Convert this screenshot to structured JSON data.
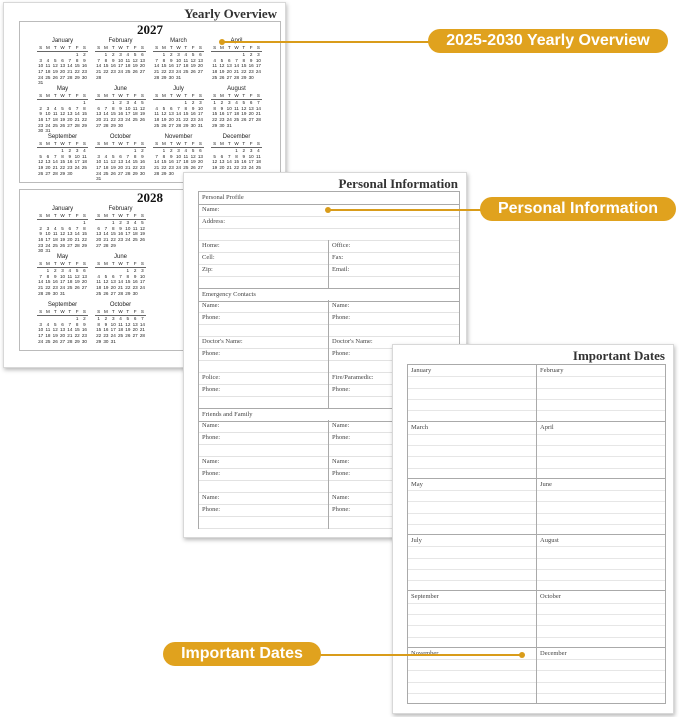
{
  "yearly": {
    "title": "Yearly Overview",
    "weekdays": [
      "S",
      "M",
      "T",
      "W",
      "T",
      "F",
      "S"
    ],
    "months": [
      "January",
      "February",
      "March",
      "April",
      "May",
      "June",
      "July",
      "August",
      "September",
      "October",
      "November",
      "December"
    ],
    "years": [
      "2027",
      "2028"
    ]
  },
  "personal": {
    "title": "Personal Information",
    "rows": [
      {
        "type": "hdr",
        "left": "Personal Profile"
      },
      {
        "type": "full",
        "left": "Name:"
      },
      {
        "type": "full",
        "left": "Address:"
      },
      {
        "type": "full",
        "left": ""
      },
      {
        "type": "split",
        "left": "Home:",
        "right": "Office:"
      },
      {
        "type": "split",
        "left": "Cell:",
        "right": "Fax:"
      },
      {
        "type": "split",
        "left": "Zip:",
        "right": "Email:"
      },
      {
        "type": "split",
        "left": "",
        "right": ""
      },
      {
        "type": "hdr",
        "left": "Emergency Contacts"
      },
      {
        "type": "split",
        "left": "Name:",
        "right": "Name:"
      },
      {
        "type": "split",
        "left": "Phone:",
        "right": "Phone:"
      },
      {
        "type": "split",
        "left": "",
        "right": ""
      },
      {
        "type": "split",
        "left": "Doctor's Name:",
        "right": "Doctor's Name:"
      },
      {
        "type": "split",
        "left": "Phone:",
        "right": "Phone:"
      },
      {
        "type": "split",
        "left": "",
        "right": ""
      },
      {
        "type": "split",
        "left": "Police:",
        "right": "Fire/Paramedic:"
      },
      {
        "type": "split",
        "left": "Phone:",
        "right": "Phone:"
      },
      {
        "type": "split",
        "left": "",
        "right": ""
      },
      {
        "type": "hdr",
        "left": "Friends and Family"
      },
      {
        "type": "split",
        "left": "Name:",
        "right": "Name:"
      },
      {
        "type": "split",
        "left": "Phone:",
        "right": "Phone:"
      },
      {
        "type": "split",
        "left": "",
        "right": ""
      },
      {
        "type": "split",
        "left": "Name:",
        "right": "Name:"
      },
      {
        "type": "split",
        "left": "Phone:",
        "right": "Phone:"
      },
      {
        "type": "split",
        "left": "",
        "right": ""
      },
      {
        "type": "split",
        "left": "Name:",
        "right": "Name:"
      },
      {
        "type": "split",
        "left": "Phone:",
        "right": "Phone:"
      },
      {
        "type": "split",
        "left": "",
        "right": ""
      }
    ]
  },
  "important": {
    "title": "Important Dates",
    "months": [
      "January",
      "February",
      "March",
      "April",
      "May",
      "June",
      "July",
      "August",
      "September",
      "October",
      "November",
      "December"
    ]
  },
  "callouts": [
    {
      "label": "2025-2030 Yearly Overview"
    },
    {
      "label": "Personal Information"
    },
    {
      "label": "Important Dates"
    }
  ],
  "colors": {
    "accent": "#e0a21e"
  }
}
